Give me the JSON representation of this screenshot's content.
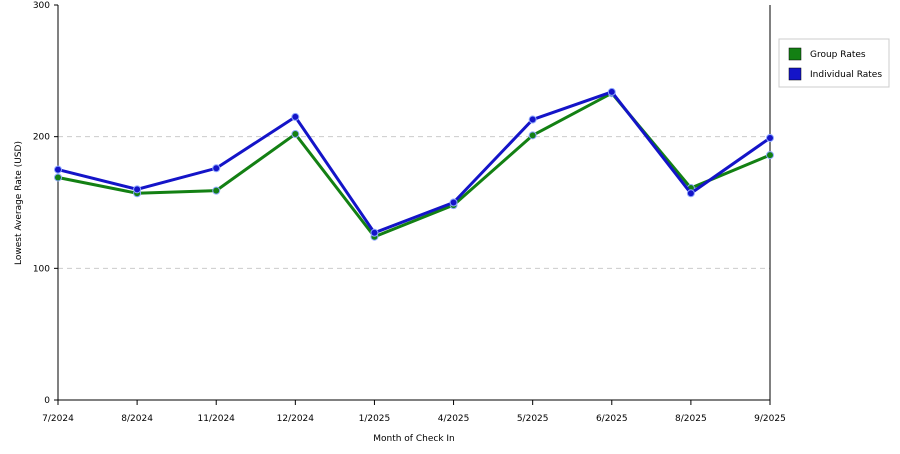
{
  "chart_data": {
    "type": "line",
    "x_label": "Month of Check In",
    "y_label": "Lowest Average Rate (USD)",
    "categories": [
      "7/2024",
      "8/2024",
      "11/2024",
      "12/2024",
      "1/2025",
      "4/2025",
      "5/2025",
      "6/2025",
      "8/2025",
      "9/2025"
    ],
    "series": [
      {
        "name": "Group Rates",
        "color": "#138013",
        "values": [
          169,
          157,
          159,
          202,
          124,
          148,
          201,
          233,
          161,
          186
        ]
      },
      {
        "name": "Individual Rates",
        "color": "#1414c8",
        "values": [
          175,
          160,
          176,
          215,
          127,
          150,
          213,
          234,
          157,
          199
        ]
      }
    ],
    "ylim": [
      0,
      300
    ],
    "yticks": [
      0,
      100,
      200,
      300
    ],
    "grid": true,
    "legend": "right"
  }
}
